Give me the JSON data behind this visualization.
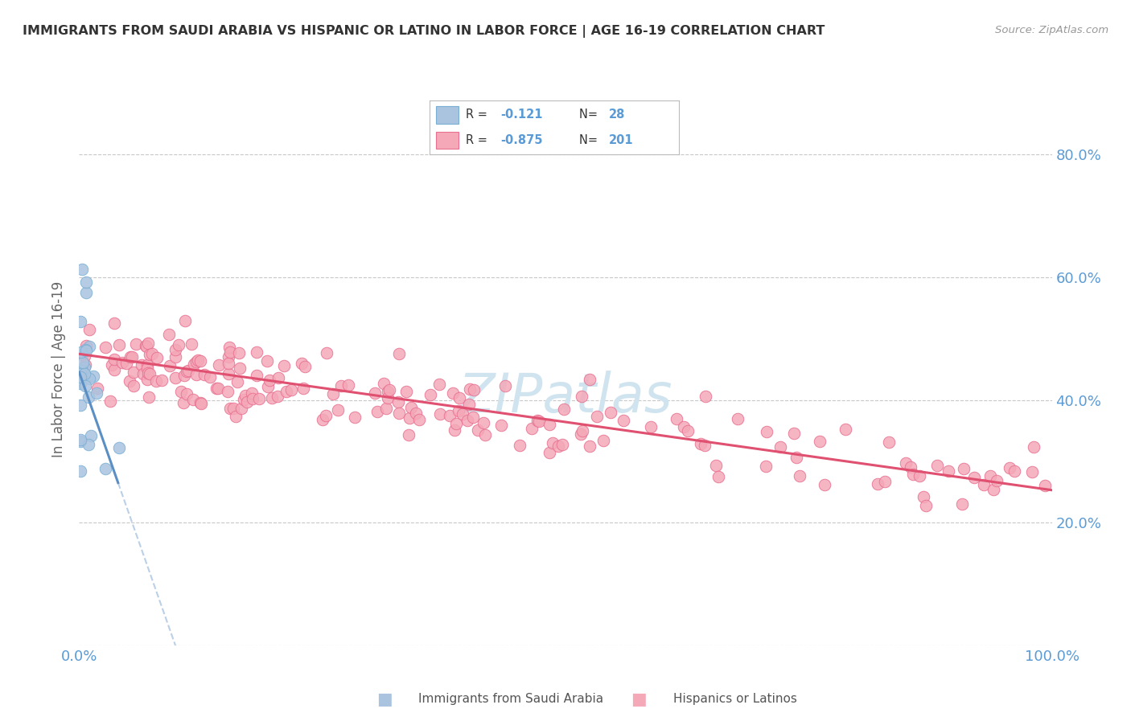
{
  "title": "IMMIGRANTS FROM SAUDI ARABIA VS HISPANIC OR LATINO IN LABOR FORCE | AGE 16-19 CORRELATION CHART",
  "source": "Source: ZipAtlas.com",
  "ylabel": "In Labor Force | Age 16-19",
  "xlim": [
    0.0,
    1.0
  ],
  "ylim": [
    0.0,
    0.9
  ],
  "series1_color": "#aac4e0",
  "series1_edge": "#7aafd4",
  "series2_color": "#f4a8b8",
  "series2_edge": "#e87090",
  "trend1_solid_color": "#5b8fc4",
  "trend1_dash_color": "#aac4e0",
  "trend2_color": "#e05070",
  "background_color": "#ffffff",
  "grid_color": "#c8c8c8",
  "watermark_color": "#d0e4f0",
  "title_color": "#333333",
  "source_color": "#999999",
  "tick_color": "#5b9bd5",
  "ylabel_color": "#666666"
}
